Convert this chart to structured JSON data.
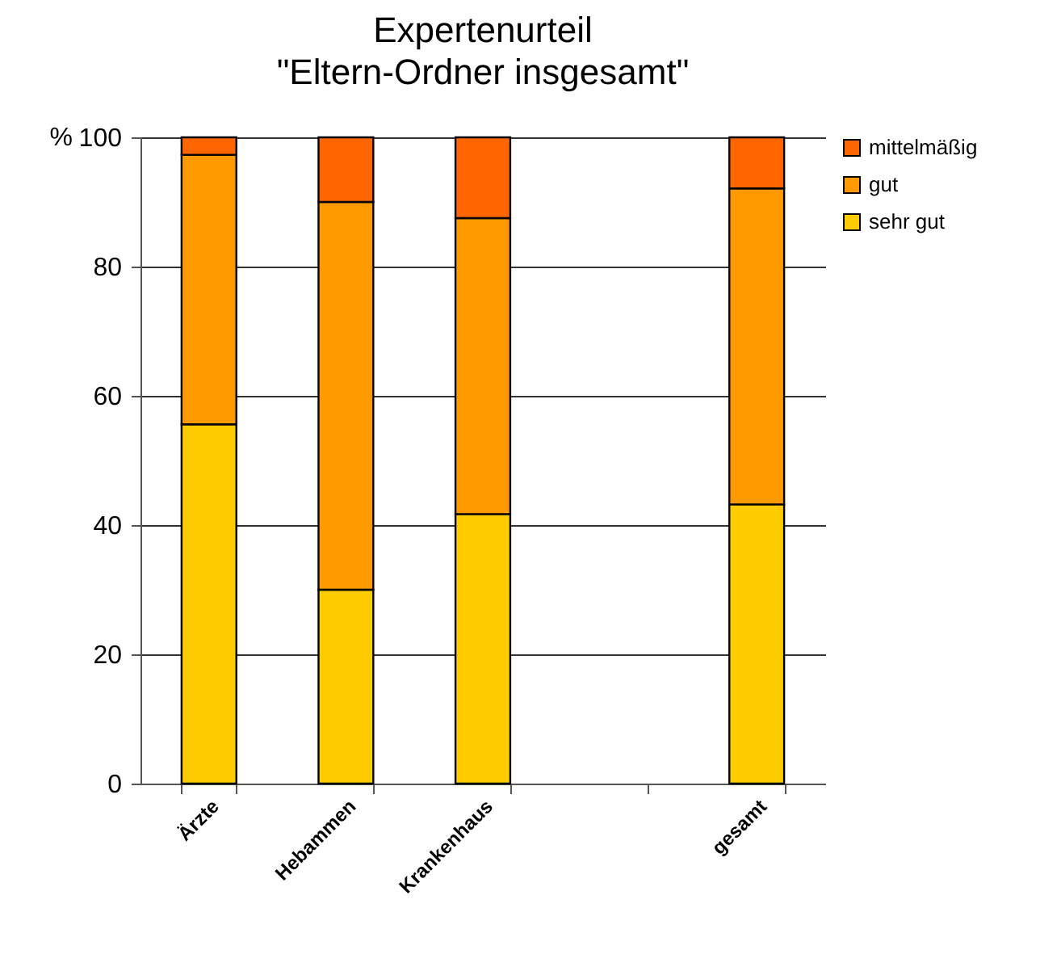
{
  "chart_data": {
    "type": "bar",
    "title": "Expertenurteil\n\"Eltern-Ordner insgesamt\"",
    "ylabel": "%",
    "categories": [
      "Ärzte",
      "Hebammen",
      "Krankenhaus",
      null,
      "gesamt"
    ],
    "stacked": true,
    "series": [
      {
        "name": "sehr gut",
        "color": "#ffcc00",
        "values": [
          55.6,
          30,
          41.7,
          null,
          43.2
        ]
      },
      {
        "name": "gut",
        "color": "#ff9900",
        "values": [
          41.7,
          60,
          45.8,
          null,
          48.9
        ]
      },
      {
        "name": "mittelmäßig",
        "color": "#ff6600",
        "values": [
          2.7,
          10,
          12.5,
          null,
          7.9
        ]
      }
    ],
    "ylim": [
      0,
      100
    ],
    "yticks": [
      0,
      20,
      40,
      60,
      80,
      100
    ],
    "grid": "y",
    "legend": "right"
  }
}
